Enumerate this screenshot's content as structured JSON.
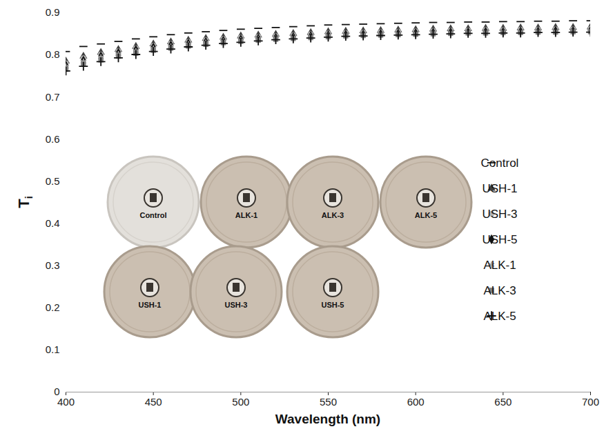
{
  "chart_data": {
    "type": "scatter",
    "x_label": "Wavelength (nm)",
    "y_label": "Ti",
    "xlim": [
      400,
      700
    ],
    "ylim": [
      0,
      0.9
    ],
    "xticks": [
      400,
      450,
      500,
      550,
      600,
      650,
      700
    ],
    "yticks": [
      0,
      0.1,
      0.2,
      0.3,
      0.4,
      0.5,
      0.6,
      0.7,
      0.8,
      0.9
    ],
    "legend": "right",
    "annotations": [
      "Control",
      "ALK-1",
      "ALK-3",
      "ALK-5",
      "USH-1",
      "USH-3",
      "USH-5"
    ],
    "x": [
      400,
      410,
      420,
      430,
      440,
      450,
      460,
      470,
      480,
      490,
      500,
      510,
      520,
      530,
      540,
      550,
      560,
      570,
      580,
      590,
      600,
      610,
      620,
      630,
      640,
      650,
      660,
      670,
      680,
      690,
      700
    ],
    "series": [
      {
        "name": "Control",
        "color": "#111111",
        "marker": "dash",
        "values": [
          0.808,
          0.82,
          0.826,
          0.832,
          0.838,
          0.843,
          0.848,
          0.852,
          0.855,
          0.858,
          0.861,
          0.863,
          0.865,
          0.867,
          0.869,
          0.871,
          0.872,
          0.873,
          0.874,
          0.875,
          0.876,
          0.877,
          0.877,
          0.878,
          0.878,
          0.879,
          0.879,
          0.88,
          0.88,
          0.881,
          0.881
        ]
      },
      {
        "name": "USH-1",
        "color": "#404040",
        "marker": "triangle",
        "values": [
          0.785,
          0.797,
          0.806,
          0.813,
          0.82,
          0.826,
          0.831,
          0.835,
          0.839,
          0.842,
          0.845,
          0.847,
          0.849,
          0.851,
          0.853,
          0.855,
          0.856,
          0.857,
          0.858,
          0.859,
          0.86,
          0.861,
          0.862,
          0.862,
          0.863,
          0.863,
          0.864,
          0.864,
          0.865,
          0.865,
          0.866
        ]
      },
      {
        "name": "USH-3",
        "color": "#b4b4b4",
        "marker": "circle",
        "values": [
          0.78,
          0.792,
          0.801,
          0.809,
          0.816,
          0.822,
          0.827,
          0.831,
          0.835,
          0.838,
          0.841,
          0.843,
          0.845,
          0.847,
          0.849,
          0.851,
          0.852,
          0.853,
          0.854,
          0.855,
          0.856,
          0.857,
          0.858,
          0.858,
          0.859,
          0.859,
          0.86,
          0.86,
          0.861,
          0.861,
          0.862
        ]
      },
      {
        "name": "USH-5",
        "color": "#111111",
        "marker": "diamond",
        "values": [
          0.775,
          0.787,
          0.797,
          0.805,
          0.812,
          0.818,
          0.823,
          0.827,
          0.831,
          0.834,
          0.837,
          0.839,
          0.841,
          0.843,
          0.845,
          0.847,
          0.848,
          0.849,
          0.85,
          0.851,
          0.852,
          0.853,
          0.854,
          0.854,
          0.855,
          0.855,
          0.856,
          0.856,
          0.857,
          0.857,
          0.858
        ]
      },
      {
        "name": "ALK-1",
        "color": "#a0a0a0",
        "marker": "asterisk",
        "values": [
          0.772,
          0.784,
          0.794,
          0.802,
          0.809,
          0.815,
          0.82,
          0.825,
          0.829,
          0.832,
          0.835,
          0.838,
          0.84,
          0.842,
          0.844,
          0.846,
          0.847,
          0.848,
          0.849,
          0.85,
          0.851,
          0.852,
          0.853,
          0.854,
          0.854,
          0.855,
          0.855,
          0.856,
          0.856,
          0.857,
          0.857
        ]
      },
      {
        "name": "ALK-3",
        "color": "#7f7f7f",
        "marker": "square",
        "values": [
          0.766,
          0.778,
          0.788,
          0.797,
          0.804,
          0.811,
          0.816,
          0.821,
          0.825,
          0.829,
          0.832,
          0.835,
          0.837,
          0.839,
          0.841,
          0.843,
          0.845,
          0.846,
          0.847,
          0.848,
          0.849,
          0.85,
          0.851,
          0.852,
          0.852,
          0.853,
          0.853,
          0.854,
          0.854,
          0.855,
          0.855
        ]
      },
      {
        "name": "ALK-5",
        "color": "#111111",
        "marker": "plus",
        "values": [
          0.762,
          0.773,
          0.784,
          0.793,
          0.801,
          0.808,
          0.814,
          0.819,
          0.823,
          0.827,
          0.83,
          0.833,
          0.836,
          0.838,
          0.84,
          0.842,
          0.844,
          0.845,
          0.846,
          0.847,
          0.848,
          0.849,
          0.85,
          0.851,
          0.851,
          0.852,
          0.852,
          0.853,
          0.853,
          0.854,
          0.854
        ]
      }
    ]
  }
}
